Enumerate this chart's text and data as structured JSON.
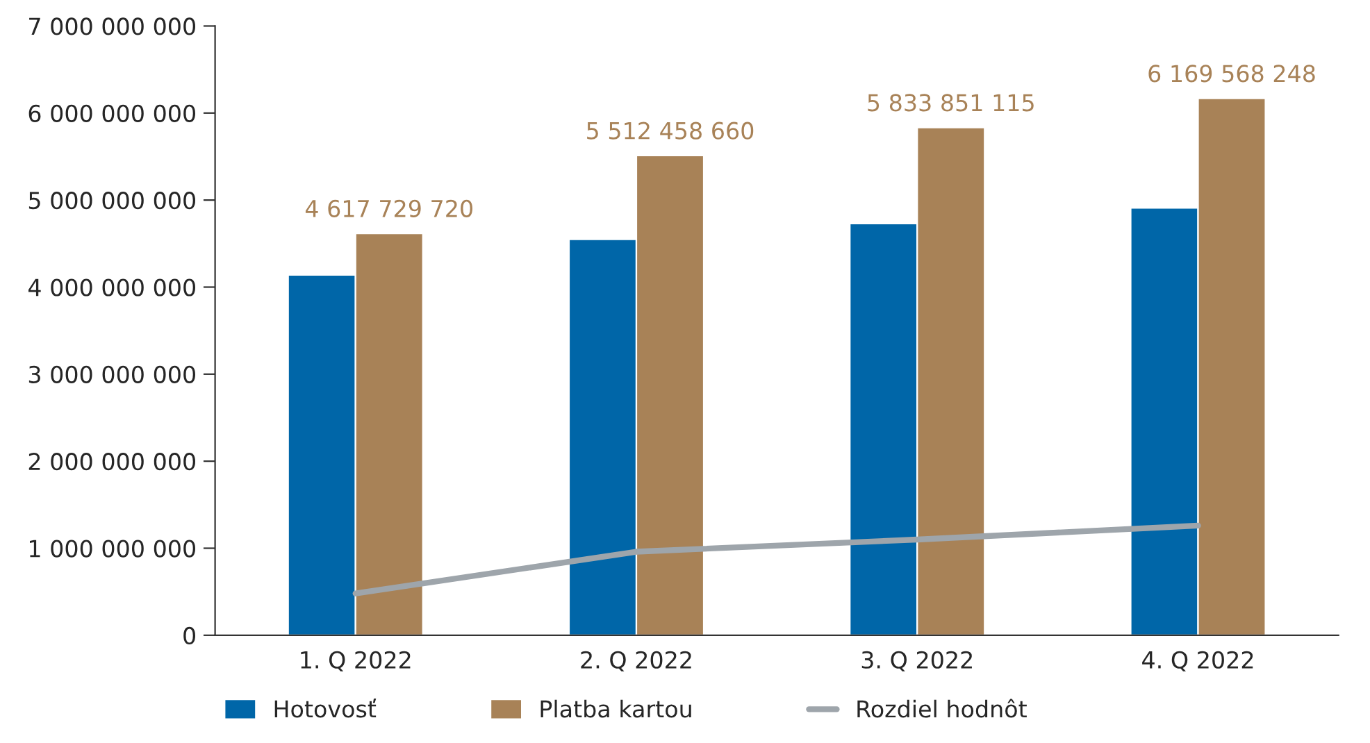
{
  "chart_data": {
    "type": "bar",
    "categories": [
      "1. Q 2022",
      "2. Q 2022",
      "3. Q 2022",
      "4. Q 2022"
    ],
    "series": [
      {
        "name": "Hotovosť",
        "color": "#0066a8",
        "values": [
          4140000000,
          4550000000,
          4730000000,
          4910000000
        ]
      },
      {
        "name": "Platba kartou",
        "color": "#a88257",
        "values": [
          4617729720,
          5512458660,
          5833851115,
          6169568248
        ],
        "value_labels": [
          "4 617 729 720",
          "5 512 458 660",
          "5 833 851 115",
          "6 169 568 248"
        ]
      },
      {
        "name": "Rozdiel hodnôt",
        "type": "line",
        "color": "#9ea5ab",
        "values": [
          480000000,
          960000000,
          1100000000,
          1260000000
        ],
        "line_style": "solid",
        "marker": "none"
      }
    ],
    "ylim": [
      0,
      7000000000
    ],
    "yticks": [
      {
        "value": 0,
        "label": "0"
      },
      {
        "value": 1000000000,
        "label": "1 000 000 000"
      },
      {
        "value": 2000000000,
        "label": "2 000 000 000"
      },
      {
        "value": 3000000000,
        "label": "3 000 000 000"
      },
      {
        "value": 4000000000,
        "label": "4 000 000 000"
      },
      {
        "value": 5000000000,
        "label": "5 000 000 000"
      },
      {
        "value": 6000000000,
        "label": "6 000 000 000"
      },
      {
        "value": 7000000000,
        "label": "7 000 000 000"
      }
    ],
    "grid": false,
    "legend": "bottom"
  }
}
